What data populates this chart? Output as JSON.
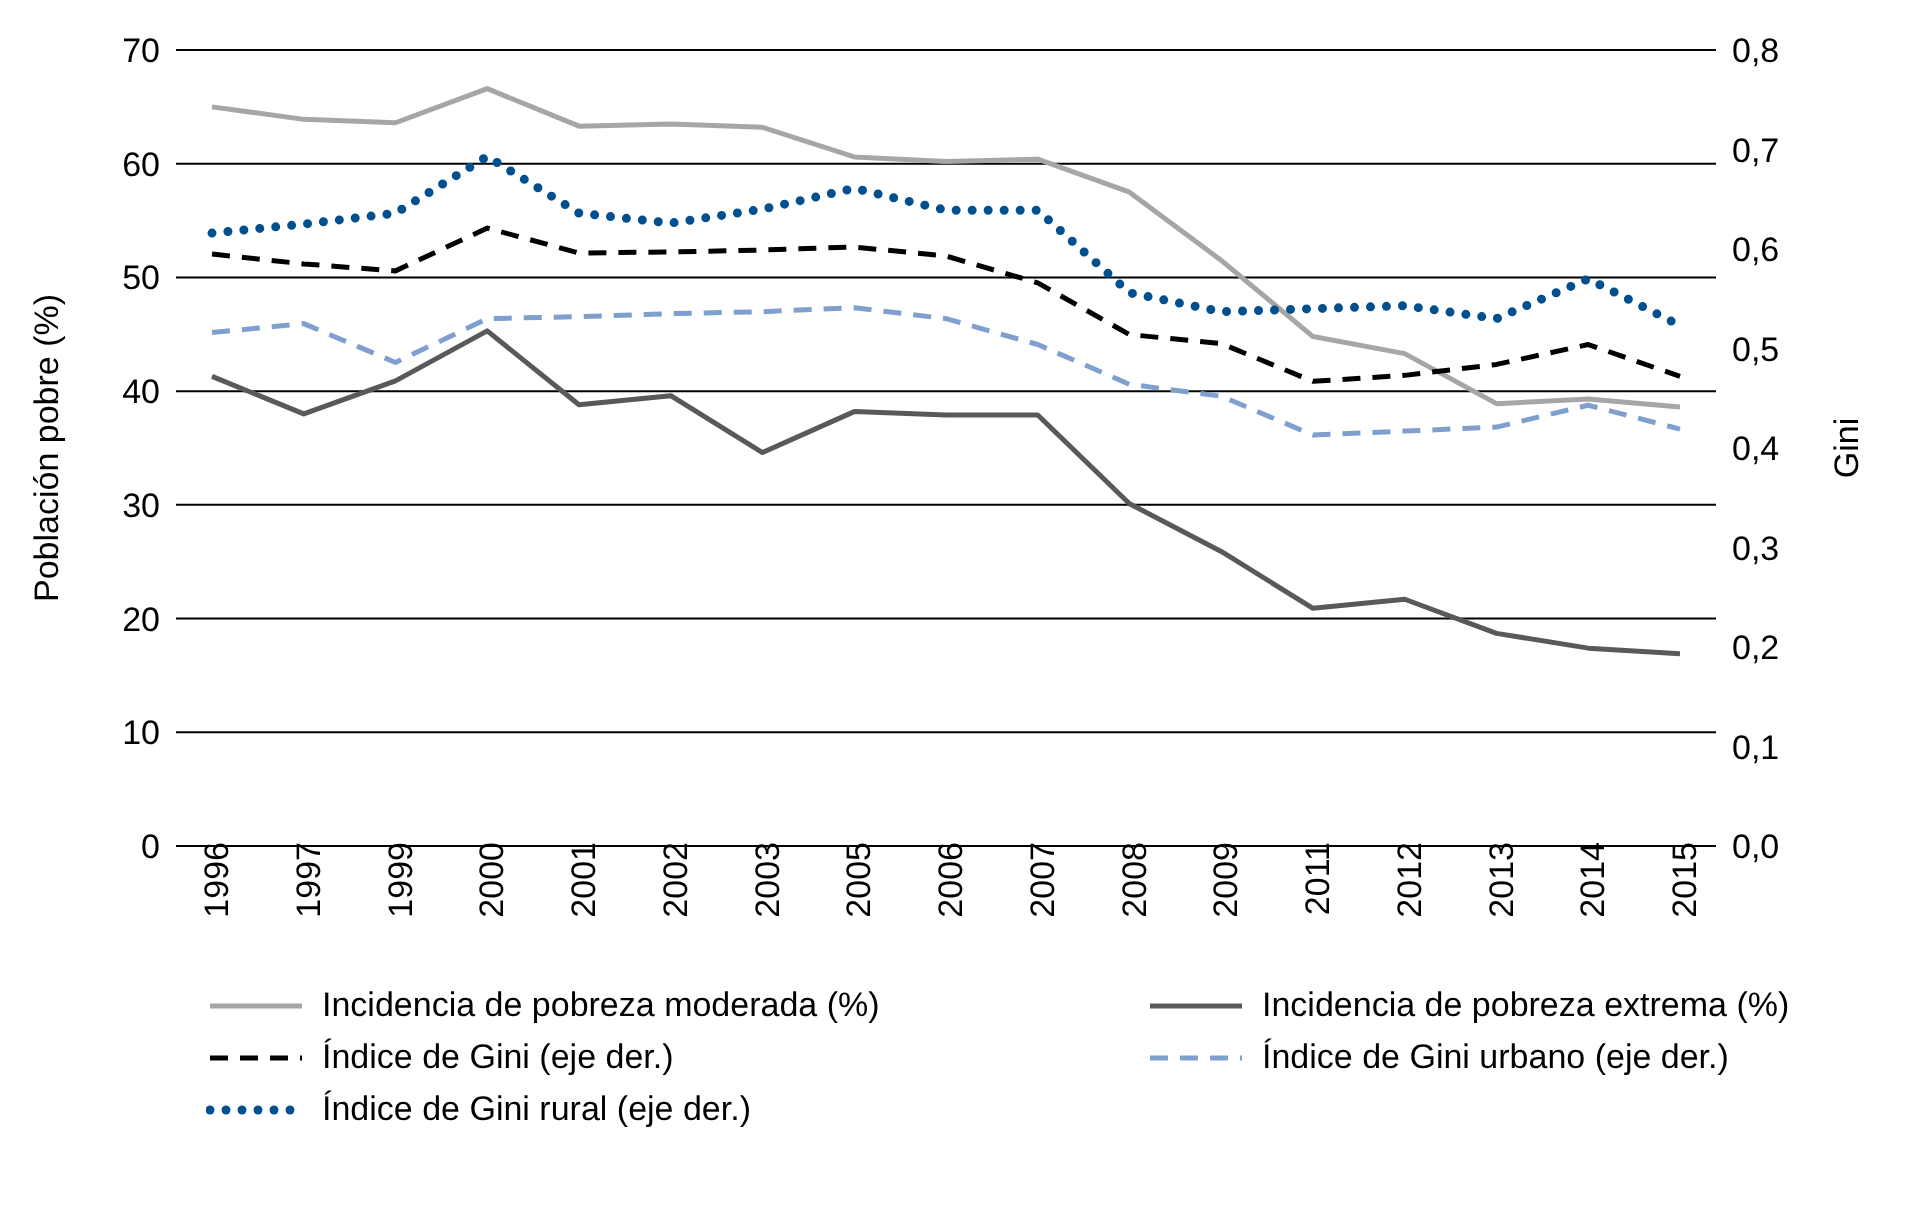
{
  "chart_data": {
    "type": "line",
    "ylabel": "Población pobre (%)",
    "y2label": "Gini",
    "categories": [
      "1996",
      "1997",
      "1999",
      "2000",
      "2001",
      "2002",
      "2003",
      "2005",
      "2006",
      "2007",
      "2008",
      "2009",
      "2011",
      "2012",
      "2013",
      "2014",
      "2015"
    ],
    "series": [
      {
        "name": "Incidencia de pobreza moderada (%)",
        "color": "#a6a6a6",
        "line_style": "solid",
        "values": [
          65.0,
          63.9,
          63.6,
          66.6,
          63.3,
          63.5,
          63.2,
          60.6,
          60.2,
          60.4,
          57.5,
          51.5,
          44.8,
          43.3,
          38.9,
          39.3,
          38.6
        ]
      },
      {
        "name": "Incidencia de pobreza extrema (%)",
        "color": "#595959",
        "line_style": "solid",
        "values": [
          41.3,
          38.0,
          40.9,
          45.3,
          38.8,
          39.6,
          34.6,
          38.2,
          37.9,
          37.9,
          30.1,
          25.9,
          20.9,
          21.7,
          18.7,
          17.4,
          16.9
        ]
      },
      {
        "name": "Índice de Gini (eje der.)",
        "color": "#000000",
        "line_style": "dashed",
        "axis": "y2",
        "values": [
          0.595,
          0.585,
          0.578,
          0.621,
          0.596,
          0.597,
          0.599,
          0.602,
          0.593,
          0.566,
          0.514,
          0.505,
          0.467,
          0.473,
          0.484,
          0.504,
          0.472
        ]
      },
      {
        "name": "Índice de Gini urbano (eje der.)",
        "color": "#7f9fcf",
        "line_style": "dashed",
        "axis": "y2",
        "values": [
          0.516,
          0.525,
          0.486,
          0.53,
          0.532,
          0.535,
          0.537,
          0.541,
          0.53,
          0.504,
          0.464,
          0.452,
          0.413,
          0.417,
          0.421,
          0.443,
          0.419
        ]
      },
      {
        "name": "Índice de Gini rural (eje der.)",
        "color": "#00508f",
        "line_style": "dotted",
        "axis": "y2",
        "values": [
          0.616,
          0.625,
          0.636,
          0.693,
          0.636,
          0.626,
          0.64,
          0.661,
          0.639,
          0.639,
          0.556,
          0.537,
          0.54,
          0.543,
          0.53,
          0.57,
          0.523
        ]
      }
    ],
    "ylim": [
      0,
      70
    ],
    "yticks": [
      0,
      10,
      20,
      30,
      40,
      50,
      60,
      70
    ],
    "y2lim": [
      0,
      0.8
    ],
    "y2ticks": [
      {
        "value": 0,
        "label": "0,0"
      },
      {
        "value": 0.1,
        "label": "0,1"
      },
      {
        "value": 0.2,
        "label": "0,2"
      },
      {
        "value": 0.3,
        "label": "0,3"
      },
      {
        "value": 0.4,
        "label": "0,4"
      },
      {
        "value": 0.5,
        "label": "0,5"
      },
      {
        "value": 0.6,
        "label": "0,6"
      },
      {
        "value": 0.7,
        "label": "0,7"
      },
      {
        "value": 0.8,
        "label": "0,8"
      }
    ],
    "grid": "y",
    "legend": "bottom",
    "marker": "none"
  }
}
